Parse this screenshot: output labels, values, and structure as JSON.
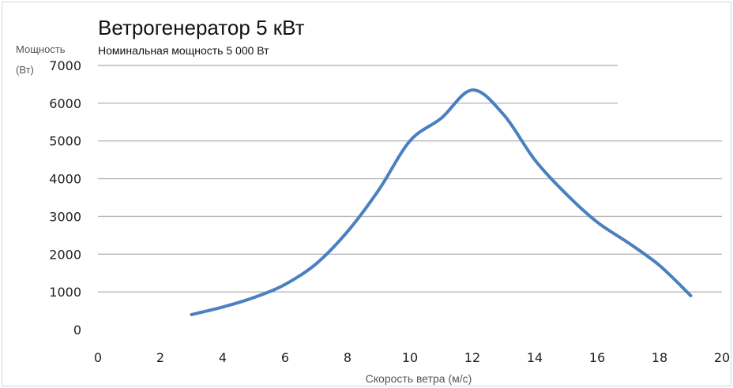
{
  "chart_data": {
    "type": "line",
    "title": "Ветрогенератор 5 кВт",
    "subtitle": "Номинальная мощность 5 000 Вт",
    "ylabel_lines": [
      "Мощность",
      "(Вт)"
    ],
    "xlabel": "Скорость ветра (м/с)",
    "xlim": [
      0,
      20
    ],
    "ylim": [
      0,
      7000
    ],
    "xticks": [
      0,
      2,
      4,
      6,
      8,
      10,
      12,
      14,
      16,
      18,
      20
    ],
    "yticks": [
      0,
      1000,
      2000,
      3000,
      4000,
      5000,
      6000,
      7000
    ],
    "grid": true,
    "legend": false,
    "series": [
      {
        "color": "#4a7fc1",
        "x": [
          3,
          4,
          5,
          6,
          7,
          8,
          9,
          10,
          11,
          12,
          13,
          14,
          15,
          16,
          17,
          18,
          19
        ],
        "y": [
          400,
          600,
          850,
          1200,
          1750,
          2600,
          3700,
          5000,
          5600,
          6350,
          5700,
          4500,
          3600,
          2850,
          2300,
          1700,
          900
        ]
      }
    ]
  }
}
